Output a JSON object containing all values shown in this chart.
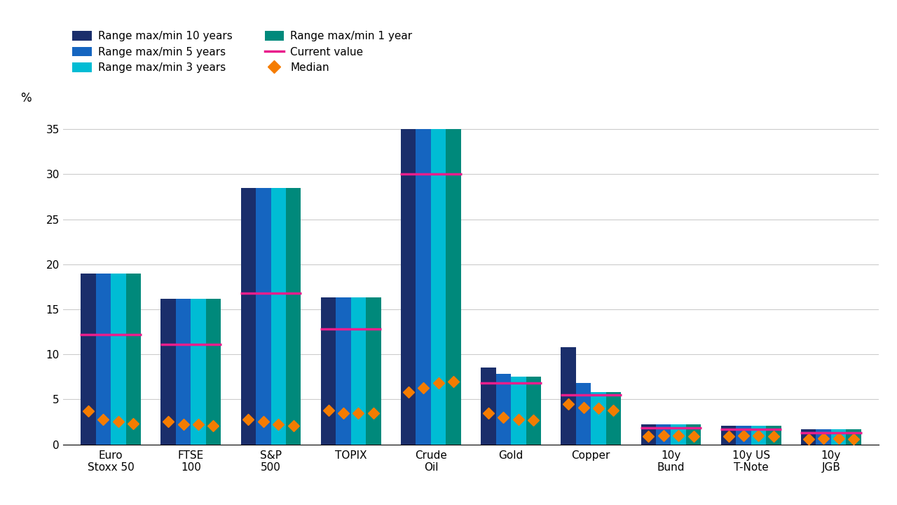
{
  "categories": [
    "Euro\nStoxx 50",
    "FTSE\n100",
    "S&P\n500",
    "TOPIX",
    "Crude\nOil",
    "Gold",
    "Copper",
    "10y\nBund",
    "10y US\nT-Note",
    "10y\nJGB"
  ],
  "range_10y": [
    19.0,
    16.2,
    28.5,
    16.3,
    35.0,
    8.5,
    10.8,
    2.2,
    2.1,
    1.7
  ],
  "range_5y": [
    19.0,
    16.2,
    28.5,
    16.3,
    35.0,
    7.8,
    6.8,
    2.2,
    2.1,
    1.7
  ],
  "range_3y": [
    19.0,
    16.2,
    28.5,
    16.3,
    35.0,
    7.5,
    5.8,
    2.2,
    2.1,
    1.7
  ],
  "range_1y": [
    19.0,
    16.2,
    28.5,
    16.3,
    35.0,
    7.5,
    5.8,
    2.2,
    2.1,
    1.7
  ],
  "current_value": [
    12.2,
    11.1,
    16.8,
    12.8,
    30.0,
    6.8,
    5.5,
    1.8,
    1.7,
    1.3
  ],
  "median_10y": [
    3.7,
    2.5,
    2.8,
    3.8,
    5.8,
    3.5,
    4.5,
    0.9,
    0.9,
    0.6
  ],
  "median_5y": [
    2.8,
    2.2,
    2.5,
    3.5,
    6.3,
    3.0,
    4.1,
    1.0,
    1.0,
    0.7
  ],
  "median_3y": [
    2.5,
    2.2,
    2.2,
    3.5,
    6.8,
    2.8,
    4.0,
    1.0,
    1.0,
    0.7
  ],
  "median_1y": [
    2.3,
    2.1,
    2.1,
    3.5,
    7.0,
    2.7,
    3.8,
    0.9,
    0.9,
    0.6
  ],
  "color_10y": "#1a2e6b",
  "color_5y": "#1565c0",
  "color_3y": "#00bcd4",
  "color_1y": "#00897b",
  "color_current": "#e91e8c",
  "color_median": "#f57c00",
  "ylim": [
    0,
    37
  ],
  "yticks": [
    0,
    5,
    10,
    15,
    20,
    25,
    30,
    35
  ],
  "ylabel": "%",
  "group_width": 0.75,
  "n_bars": 4
}
